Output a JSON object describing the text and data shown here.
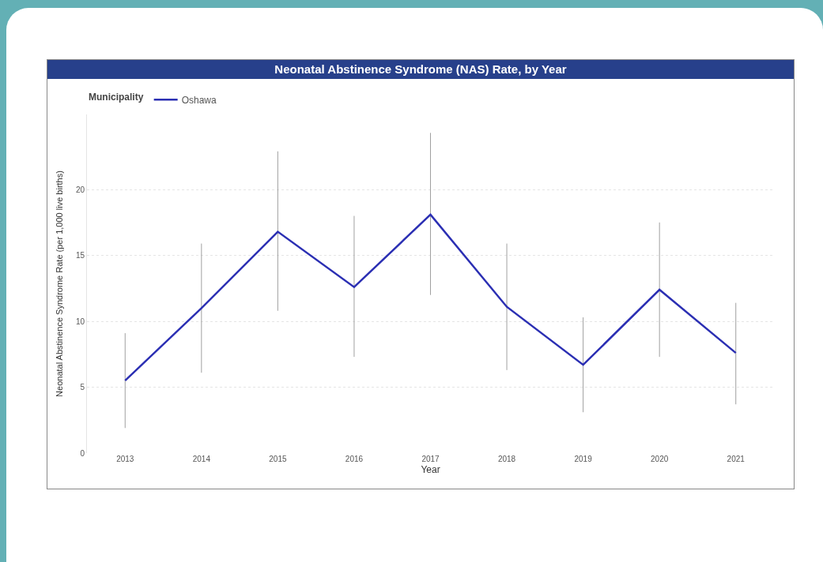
{
  "chart_data": {
    "type": "line",
    "title": "Neonatal Abstinence Syndrome (NAS) Rate, by Year",
    "xlabel": "Year",
    "ylabel": "Neonatal Abstinence Syndrome Rate (per 1,000 live births)",
    "legend_title": "Municipality",
    "categories": [
      "2013",
      "2014",
      "2015",
      "2016",
      "2017",
      "2018",
      "2019",
      "2020",
      "2021"
    ],
    "series": [
      {
        "name": "Oshawa",
        "color": "#2b2fb3",
        "values": [
          5.5,
          11.0,
          16.8,
          12.6,
          18.1,
          11.1,
          6.7,
          12.4,
          7.6
        ],
        "errors": [
          [
            1.9,
            9.1
          ],
          [
            6.1,
            15.9
          ],
          [
            10.8,
            22.9
          ],
          [
            7.3,
            18.0
          ],
          [
            12.0,
            24.3
          ],
          [
            6.3,
            15.9
          ],
          [
            3.1,
            10.3
          ],
          [
            7.3,
            17.5
          ],
          [
            3.7,
            11.4
          ]
        ]
      }
    ],
    "ylim": [
      0,
      25.7
    ],
    "yticks": [
      0,
      5,
      10,
      15,
      20
    ],
    "grid": "y",
    "legend": "top left",
    "marker": "none",
    "line_style": "solid"
  }
}
